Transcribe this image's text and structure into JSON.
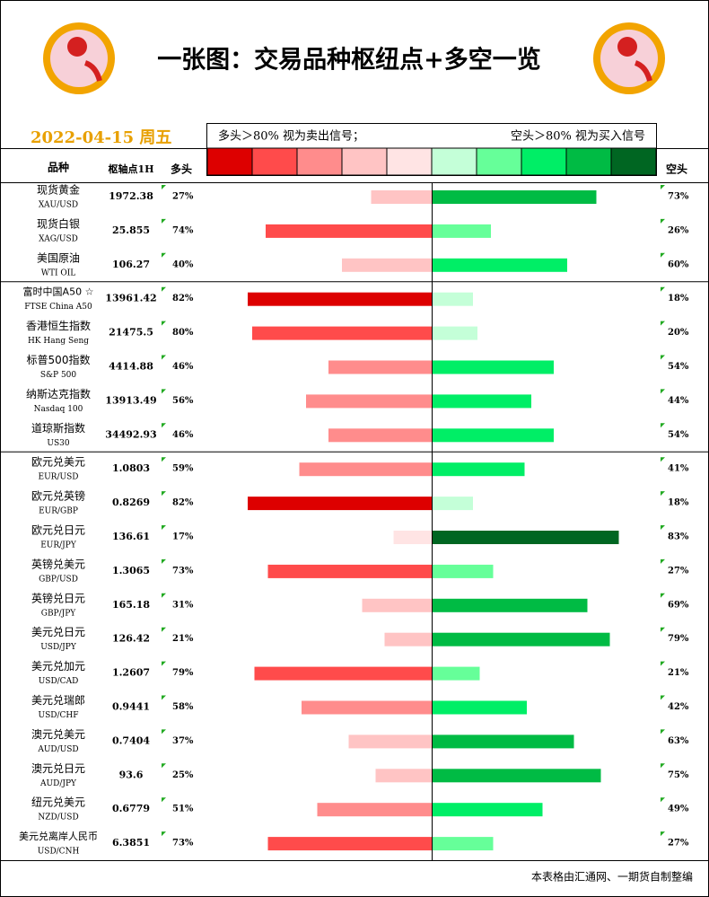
{
  "header": {
    "title": "一张图：交易品种枢纽点+多空一览",
    "date": "2022-04-15 周五",
    "legend_left": "多头＞80% 视为卖出信号；",
    "legend_right": "空头＞80% 视为买入信号",
    "legend_colors": [
      "#dd0000",
      "#ff4b4b",
      "#ff8c8c",
      "#ffc4c4",
      "#ffe4e4",
      "#c4ffd8",
      "#66ff99",
      "#00ee66",
      "#00bb44",
      "#006622"
    ]
  },
  "columns": {
    "name": "品种",
    "pivot": "枢轴点1H",
    "long": "多头",
    "short": "空头"
  },
  "rows": [
    {
      "name": "现货黄金",
      "sub": "XAU/USD",
      "pivot": "1972.38",
      "long": 27,
      "long_label": "27%",
      "short": 73,
      "short_label": "73%",
      "long_color": "#ffc4c4",
      "short_color": "#00bb44"
    },
    {
      "name": "现货白银",
      "sub": "XAG/USD",
      "pivot": "25.855",
      "long": 74,
      "long_label": "74%",
      "short": 26,
      "short_label": "26%",
      "long_color": "#ff4b4b",
      "short_color": "#66ff99"
    },
    {
      "name": "美国原油",
      "sub": "WTI OIL",
      "pivot": "106.27",
      "long": 40,
      "long_label": "40%",
      "short": 60,
      "short_label": "60%",
      "long_color": "#ffc4c4",
      "short_color": "#00ee66"
    },
    {
      "name": "富时中国A50 ☆",
      "sub": "FTSE China A50",
      "pivot": "13961.42",
      "long": 82,
      "long_label": "82%",
      "short": 18,
      "short_label": "18%",
      "long_color": "#dd0000",
      "short_color": "#c4ffd8"
    },
    {
      "name": "香港恒生指数",
      "sub": "HK Hang Seng",
      "pivot": "21475.5",
      "long": 80,
      "long_label": "80%",
      "short": 20,
      "short_label": "20%",
      "long_color": "#ff4b4b",
      "short_color": "#c4ffd8"
    },
    {
      "name": "标普500指数",
      "sub": "S&P 500",
      "pivot": "4414.88",
      "long": 46,
      "long_label": "46%",
      "short": 54,
      "short_label": "54%",
      "long_color": "#ff8c8c",
      "short_color": "#00ee66"
    },
    {
      "name": "纳斯达克指数",
      "sub": "Nasdaq 100",
      "pivot": "13913.49",
      "long": 56,
      "long_label": "56%",
      "short": 44,
      "short_label": "44%",
      "long_color": "#ff8c8c",
      "short_color": "#00ee66"
    },
    {
      "name": "道琼斯指数",
      "sub": "US30",
      "pivot": "34492.93",
      "long": 46,
      "long_label": "46%",
      "short": 54,
      "short_label": "54%",
      "long_color": "#ff8c8c",
      "short_color": "#00ee66"
    },
    {
      "name": "欧元兑美元",
      "sub": "EUR/USD",
      "pivot": "1.0803",
      "long": 59,
      "long_label": "59%",
      "short": 41,
      "short_label": "41%",
      "long_color": "#ff8c8c",
      "short_color": "#00ee66"
    },
    {
      "name": "欧元兑英镑",
      "sub": "EUR/GBP",
      "pivot": "0.8269",
      "long": 82,
      "long_label": "82%",
      "short": 18,
      "short_label": "18%",
      "long_color": "#dd0000",
      "short_color": "#c4ffd8"
    },
    {
      "name": "欧元兑日元",
      "sub": "EUR/JPY",
      "pivot": "136.61",
      "long": 17,
      "long_label": "17%",
      "short": 83,
      "short_label": "83%",
      "long_color": "#ffe4e4",
      "short_color": "#006622"
    },
    {
      "name": "英镑兑美元",
      "sub": "GBP/USD",
      "pivot": "1.3065",
      "long": 73,
      "long_label": "73%",
      "short": 27,
      "short_label": "27%",
      "long_color": "#ff4b4b",
      "short_color": "#66ff99"
    },
    {
      "name": "英镑兑日元",
      "sub": "GBP/JPY",
      "pivot": "165.18",
      "long": 31,
      "long_label": "31%",
      "short": 69,
      "short_label": "69%",
      "long_color": "#ffc4c4",
      "short_color": "#00bb44"
    },
    {
      "name": "美元兑日元",
      "sub": "USD/JPY",
      "pivot": "126.42",
      "long": 21,
      "long_label": "21%",
      "short": 79,
      "short_label": "79%",
      "long_color": "#ffc4c4",
      "short_color": "#00bb44"
    },
    {
      "name": "美元兑加元",
      "sub": "USD/CAD",
      "pivot": "1.2607",
      "long": 79,
      "long_label": "79%",
      "short": 21,
      "short_label": "21%",
      "long_color": "#ff4b4b",
      "short_color": "#66ff99"
    },
    {
      "name": "美元兑瑞郎",
      "sub": "USD/CHF",
      "pivot": "0.9441",
      "long": 58,
      "long_label": "58%",
      "short": 42,
      "short_label": "42%",
      "long_color": "#ff8c8c",
      "short_color": "#00ee66"
    },
    {
      "name": "澳元兑美元",
      "sub": "AUD/USD",
      "pivot": "0.7404",
      "long": 37,
      "long_label": "37%",
      "short": 63,
      "short_label": "63%",
      "long_color": "#ffc4c4",
      "short_color": "#00bb44"
    },
    {
      "name": "澳元兑日元",
      "sub": "AUD/JPY",
      "pivot": "93.6",
      "long": 25,
      "long_label": "25%",
      "short": 75,
      "short_label": "75%",
      "long_color": "#ffc4c4",
      "short_color": "#00bb44"
    },
    {
      "name": "纽元兑美元",
      "sub": "NZD/USD",
      "pivot": "0.6779",
      "long": 51,
      "long_label": "51%",
      "short": 49,
      "short_label": "49%",
      "long_color": "#ff8c8c",
      "short_color": "#00ee66"
    },
    {
      "name": "美元兑离岸人民币",
      "sub": "USD/CNH",
      "pivot": "6.3851",
      "long": 73,
      "long_label": "73%",
      "short": 27,
      "short_label": "27%",
      "long_color": "#ff4b4b",
      "short_color": "#66ff99"
    }
  ],
  "footer": "本表格由汇通网、一期货自制整编"
}
